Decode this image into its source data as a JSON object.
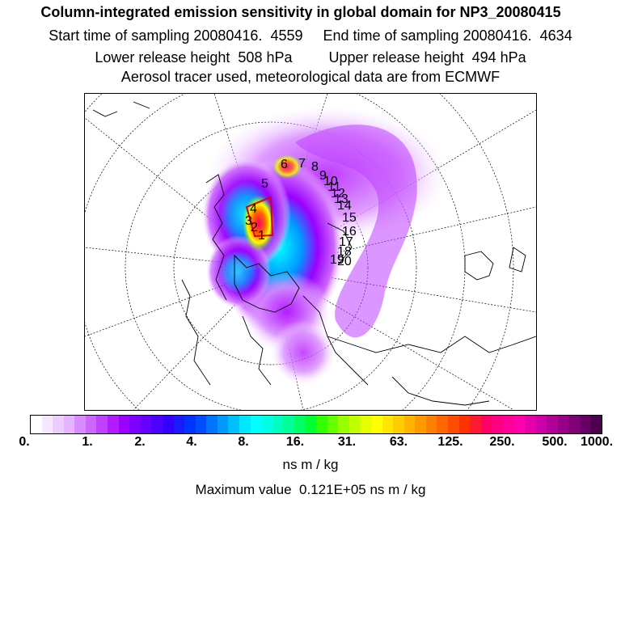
{
  "header": {
    "title": "Column-integrated emission sensitivity in global domain for NP3_20080415",
    "sampling": "Start time of sampling 20080416.  4559     End time of sampling 20080416.  4634",
    "release": "Lower release height  508 hPa         Upper release height  494 hPa",
    "tracer": "Aerosol tracer used, meteorological data are from ECMWF"
  },
  "map": {
    "projection": "polar stereographic",
    "track_labels": [
      "1",
      "2",
      "3",
      "4",
      "5",
      "6",
      "7",
      "8",
      "9",
      "10",
      "11",
      "12",
      "13",
      "14",
      "15",
      "16",
      "17",
      "18",
      "19",
      "20"
    ]
  },
  "legend": {
    "colors": [
      "#ffffff",
      "#f7e6ff",
      "#efccff",
      "#e6b3ff",
      "#d98cff",
      "#cc66ff",
      "#bf40ff",
      "#b31aff",
      "#9900ff",
      "#7f00ff",
      "#6600ff",
      "#4d00ff",
      "#3300ff",
      "#1a1aff",
      "#0033ff",
      "#004dff",
      "#0073ff",
      "#0099ff",
      "#00bfff",
      "#00e6ff",
      "#00ffff",
      "#00ffe6",
      "#00ffbf",
      "#00ff99",
      "#00ff66",
      "#00ff33",
      "#33ff00",
      "#66ff00",
      "#99ff00",
      "#bfff00",
      "#e6ff00",
      "#ffff00",
      "#ffe600",
      "#ffcc00",
      "#ffb300",
      "#ff9900",
      "#ff8000",
      "#ff6600",
      "#ff4d00",
      "#ff3300",
      "#ff1a33",
      "#ff0066",
      "#ff0080",
      "#ff0099",
      "#ff00aa",
      "#e600aa",
      "#cc00aa",
      "#b30099",
      "#990088",
      "#800077",
      "#660066",
      "#4d004d"
    ],
    "ticks": [
      "0.",
      "1.",
      "2.",
      "4.",
      "8.",
      "16.",
      "31.",
      "63.",
      "125.",
      "250.",
      "500.",
      "1000."
    ],
    "units": "ns m / kg",
    "max_value": "Maximum value  0.121E+05 ns m / kg"
  }
}
